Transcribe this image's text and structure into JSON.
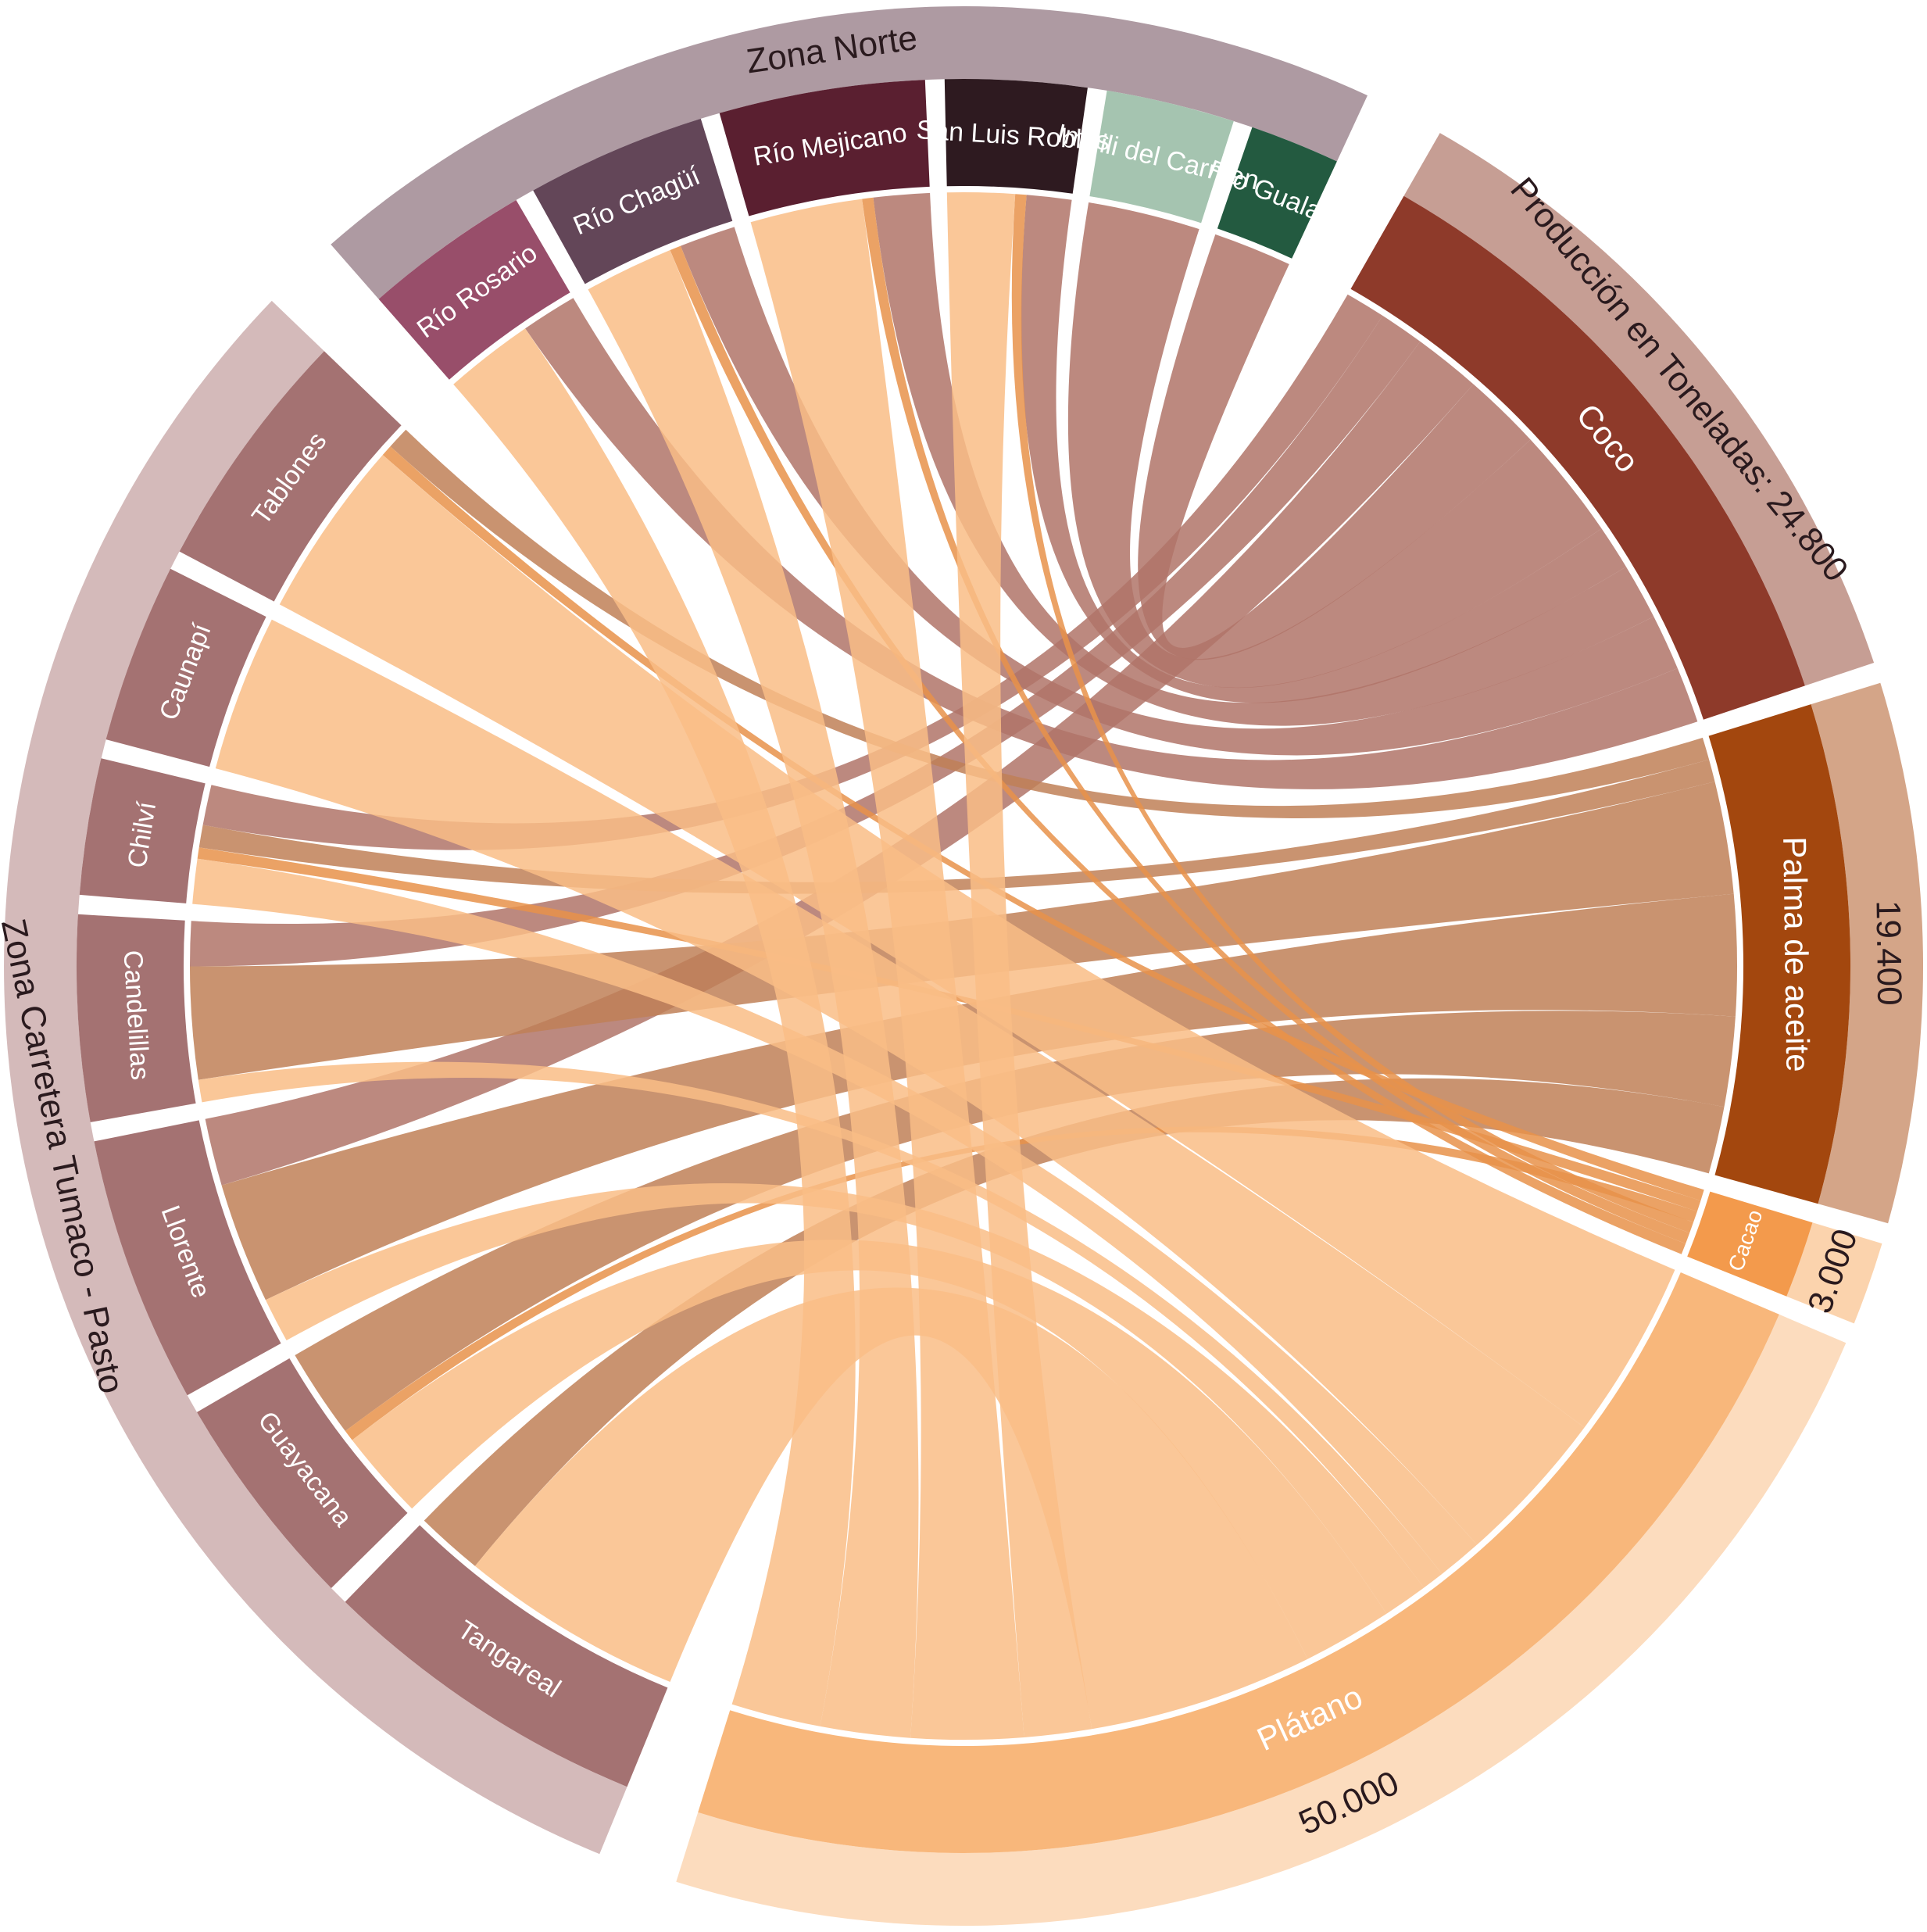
{
  "chart_data": {
    "type": "chord",
    "axis_label": "Producción en Toneladas:",
    "groups": [
      {
        "name": "Zona Norte",
        "color": "#ae9aa2"
      },
      {
        "name": "Zona Carretera Tumaco - Pasto",
        "color": "#d4baba"
      }
    ],
    "sources": [
      {
        "name": "Río Rosario",
        "group": "Zona Norte",
        "color": "#984e6a"
      },
      {
        "name": "Río Chagüí",
        "group": "Zona Norte",
        "color": "#634658"
      },
      {
        "name": "Río Mejicano",
        "group": "Zona Norte",
        "color": "#5a1f30"
      },
      {
        "name": "San Luis Robles",
        "group": "Zona Norte",
        "color": "#2e1a20"
      },
      {
        "name": "Imbili del Carmen",
        "group": "Zona Norte",
        "color": "#a5c4b0"
      },
      {
        "name": "Río Gualajo",
        "group": "Zona Norte",
        "color": "#235a40"
      },
      {
        "name": "Tangareal",
        "group": "Zona Carretera Tumaco - Pasto",
        "color": "#a47272"
      },
      {
        "name": "Guayacana",
        "group": "Zona Carretera Tumaco - Pasto",
        "color": "#a47272"
      },
      {
        "name": "Llorente",
        "group": "Zona Carretera Tumaco - Pasto",
        "color": "#a47272"
      },
      {
        "name": "Candelillas",
        "group": "Zona Carretera Tumaco - Pasto",
        "color": "#a47272"
      },
      {
        "name": "Chilví",
        "group": "Zona Carretera Tumaco - Pasto",
        "color": "#a47272"
      },
      {
        "name": "Caunapí",
        "group": "Zona Carretera Tumaco - Pasto",
        "color": "#a47272"
      },
      {
        "name": "Tablones",
        "group": "Zona Carretera Tumaco - Pasto",
        "color": "#a47272"
      }
    ],
    "targets": [
      {
        "name": "Coco",
        "value": 24800,
        "value_label": "24.800",
        "color": "#8e3a2a",
        "chord_color": "#b07468",
        "ring_color": "#c69e94"
      },
      {
        "name": "Palma de aceite",
        "value": 19400,
        "value_label": "19.400",
        "color": "#a3470e",
        "chord_color": "#c08057",
        "ring_color": "#d4a588"
      },
      {
        "name": "Cacao",
        "value": 3000,
        "value_label": "3.000",
        "color": "#f39a4c",
        "chord_color": "#e8924a",
        "ring_color": "#fbd3ad"
      },
      {
        "name": "Plátano",
        "value": 50000,
        "value_label": "50.000",
        "color": "#f8b77b",
        "chord_color": "#f9bd86",
        "ring_color": "#fcdcbe"
      }
    ],
    "flows": [
      {
        "source": "Río Rosario",
        "target": "Coco",
        "value": 2500
      },
      {
        "source": "Río Chagüí",
        "target": "Coco",
        "value": 2500
      },
      {
        "source": "Río Mejicano",
        "target": "Coco",
        "value": 2500
      },
      {
        "source": "San Luis Robles",
        "target": "Coco",
        "value": 2000
      },
      {
        "source": "Imbili del Carmen",
        "target": "Coco",
        "value": 5000
      },
      {
        "source": "Río Gualajo",
        "target": "Coco",
        "value": 3500
      },
      {
        "source": "Chilví",
        "target": "Coco",
        "value": 1800
      },
      {
        "source": "Candelillas",
        "target": "Coco",
        "value": 2000
      },
      {
        "source": "Llorente",
        "target": "Coco",
        "value": 3000
      },
      {
        "source": "Candelillas",
        "target": "Palma de aceite",
        "value": 5000
      },
      {
        "source": "Llorente",
        "target": "Palma de aceite",
        "value": 5400
      },
      {
        "source": "Guayacana",
        "target": "Palma de aceite",
        "value": 4000
      },
      {
        "source": "Tangareal",
        "target": "Palma de aceite",
        "value": 3000
      },
      {
        "source": "Chilví",
        "target": "Palma de aceite",
        "value": 1000
      },
      {
        "source": "Tablones",
        "target": "Palma de aceite",
        "value": 1000
      },
      {
        "source": "Río Chagüí",
        "target": "Cacao",
        "value": 500
      },
      {
        "source": "Río Mejicano",
        "target": "Cacao",
        "value": 500
      },
      {
        "source": "San Luis Robles",
        "target": "Cacao",
        "value": 500
      },
      {
        "source": "Chilví",
        "target": "Cacao",
        "value": 500
      },
      {
        "source": "Tablones",
        "target": "Cacao",
        "value": 500
      },
      {
        "source": "Guayacana",
        "target": "Cacao",
        "value": 500
      },
      {
        "source": "Río Rosario",
        "target": "Plátano",
        "value": 4000
      },
      {
        "source": "Río Chagüí",
        "target": "Plátano",
        "value": 4000
      },
      {
        "source": "Río Mejicano",
        "target": "Plátano",
        "value": 5000
      },
      {
        "source": "San Luis Robles",
        "target": "Plátano",
        "value": 3000
      },
      {
        "source": "Tablones",
        "target": "Plátano",
        "value": 8000
      },
      {
        "source": "Caunapí",
        "target": "Plátano",
        "value": 7000
      },
      {
        "source": "Chilví",
        "target": "Plátano",
        "value": 2000
      },
      {
        "source": "Candelillas",
        "target": "Plátano",
        "value": 1000
      },
      {
        "source": "Llorente",
        "target": "Plátano",
        "value": 2000
      },
      {
        "source": "Guayacana",
        "target": "Plátano",
        "value": 4000
      },
      {
        "source": "Tangareal",
        "target": "Plátano",
        "value": 10000
      }
    ]
  }
}
